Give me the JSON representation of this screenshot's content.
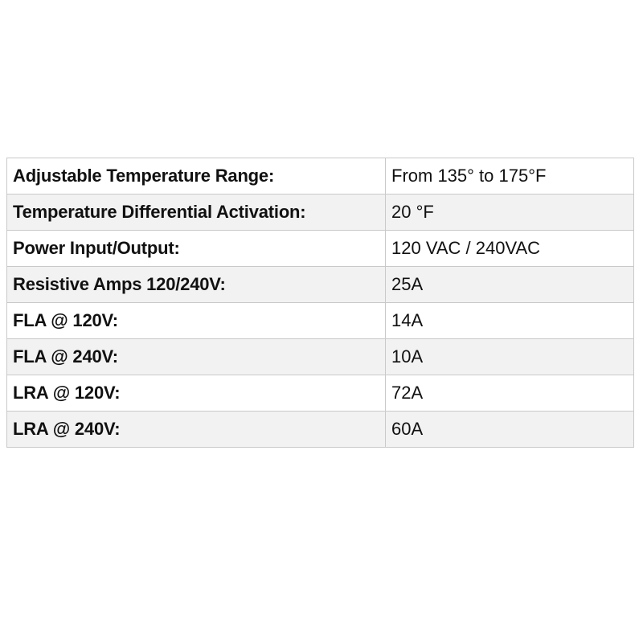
{
  "specs": [
    {
      "label": "Adjustable Temperature Range:",
      "value": "From 135° to 175°F"
    },
    {
      "label": "Temperature Differential Activation:",
      "value": "20 °F"
    },
    {
      "label": "Power Input/Output:",
      "value": "120 VAC / 240VAC"
    },
    {
      "label": "Resistive Amps 120/240V:",
      "value": "25A"
    },
    {
      "label": "FLA @ 120V:",
      "value": "14A"
    },
    {
      "label": "FLA @ 240V:",
      "value": "10A"
    },
    {
      "label": "LRA @ 120V:",
      "value": "72A"
    },
    {
      "label": "LRA @ 240V:",
      "value": "60A"
    }
  ],
  "colors": {
    "row_shade": "#f2f2f2",
    "row_plain": "#ffffff",
    "border": "#c9c9c9",
    "text": "#111111"
  }
}
